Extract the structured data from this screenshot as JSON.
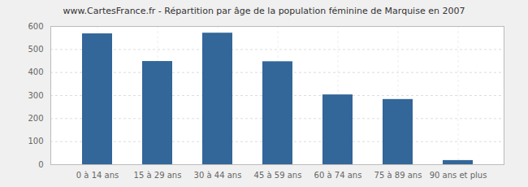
{
  "chart_data": {
    "type": "bar",
    "title": "www.CartesFrance.fr - Répartition par âge de la population féminine de Marquise en 2007",
    "categories": [
      "0 à 14 ans",
      "15 à 29 ans",
      "30 à 44 ans",
      "45 à 59 ans",
      "60 à 74 ans",
      "75 à 89 ans",
      "90 ans et plus"
    ],
    "values": [
      568,
      448,
      571,
      447,
      303,
      283,
      18
    ],
    "color": "#336699",
    "ylim": [
      0,
      600
    ],
    "yticks": [
      0,
      100,
      200,
      300,
      400,
      500,
      600
    ],
    "grid": true
  }
}
